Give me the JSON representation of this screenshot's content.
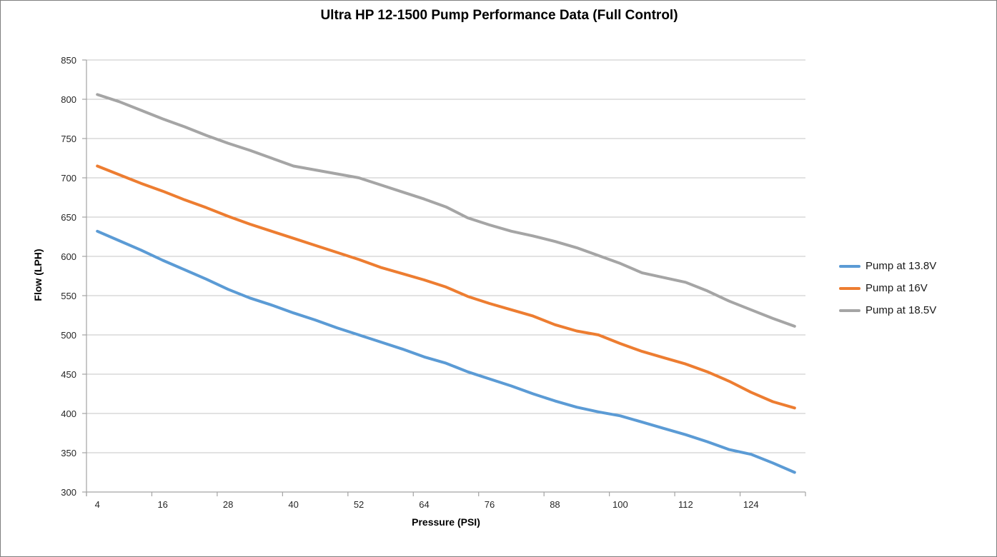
{
  "page": {
    "title": "Ultra HP 12-1500 Pump Performance Data (Full Control)"
  },
  "chart_data": {
    "type": "line",
    "title": "Ultra HP 12-1500 Pump Performance Data (Full Control)",
    "xlabel": "Pressure (PSI)",
    "ylabel": "Flow (LPH)",
    "x": [
      4,
      8,
      12,
      16,
      20,
      24,
      28,
      32,
      36,
      40,
      44,
      48,
      52,
      56,
      60,
      64,
      68,
      72,
      76,
      80,
      84,
      88,
      92,
      96,
      100,
      104,
      108,
      112,
      116,
      120,
      124,
      128,
      132
    ],
    "x_labeled_ticks": [
      4,
      16,
      28,
      40,
      52,
      64,
      76,
      88,
      100,
      112,
      124
    ],
    "ylim": [
      300,
      850
    ],
    "y_tick_step": 50,
    "y_tick_labels": [
      "300",
      "350",
      "400",
      "450",
      "500",
      "550",
      "600",
      "650",
      "700",
      "750",
      "800",
      "850"
    ],
    "grid": "horizontal",
    "legend_position": "right",
    "series": [
      {
        "name": "Pump at 13.8V",
        "color": "#5B9BD5",
        "values": [
          632,
          620,
          608,
          595,
          583,
          571,
          558,
          547,
          538,
          528,
          519,
          509,
          500,
          491,
          482,
          472,
          464,
          453,
          444,
          435,
          425,
          416,
          408,
          402,
          397,
          389,
          381,
          373,
          364,
          354,
          348,
          337,
          325
        ]
      },
      {
        "name": "Pump at 16V",
        "color": "#ED7D31",
        "values": [
          715,
          704,
          693,
          683,
          672,
          662,
          651,
          641,
          632,
          623,
          614,
          605,
          596,
          586,
          578,
          570,
          561,
          549,
          540,
          532,
          524,
          513,
          505,
          500,
          489,
          479,
          471,
          463,
          453,
          441,
          427,
          415,
          407
        ]
      },
      {
        "name": "Pump at 18.5V",
        "color": "#A5A5A5",
        "values": [
          806,
          797,
          786,
          775,
          765,
          754,
          744,
          735,
          725,
          715,
          710,
          705,
          700,
          691,
          682,
          673,
          663,
          649,
          640,
          632,
          626,
          619,
          611,
          601,
          591,
          579,
          573,
          567,
          556,
          543,
          532,
          521,
          511
        ]
      }
    ],
    "colors": {
      "gridline": "#C6C6C6",
      "axis_line": "#A3A3A3",
      "tick_label": "#262626",
      "background": "#FFFFFF"
    }
  }
}
